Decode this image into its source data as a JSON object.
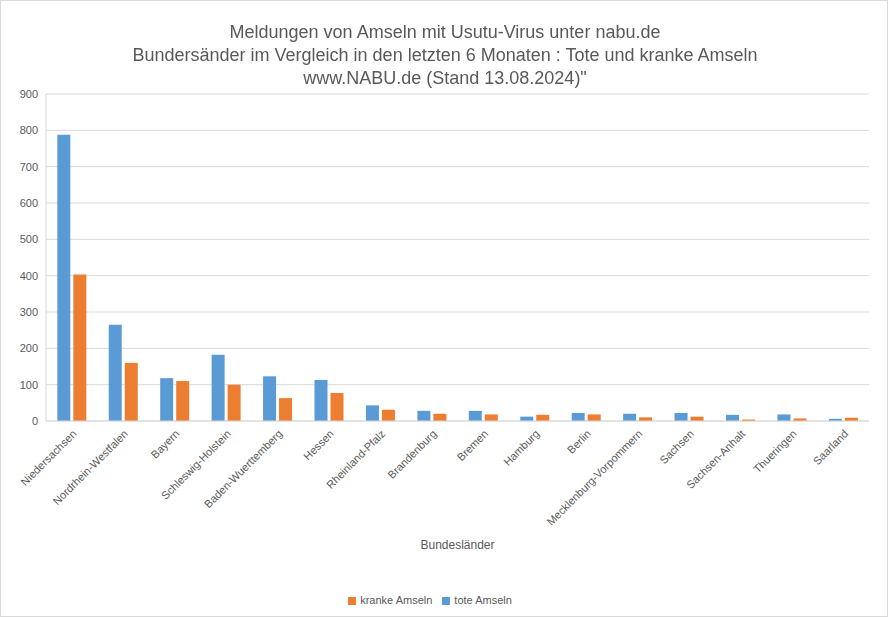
{
  "chart_data": {
    "type": "bar",
    "title": [
      "Meldungen von Amseln mit Usutu-Virus unter nabu.de",
      "Bundersänder im Vergleich in den letzten 6 Monaten : Tote und kranke Amseln",
      "www.NABU.de (Stand 13.08.2024)\""
    ],
    "x_label": "Bundesländer",
    "categories": [
      "Niedersachsen",
      "Nordrhein-Westfalen",
      "Bayern",
      "Schleswig-Holstein",
      "Baden-Wuerttemberg",
      "Hessen",
      "Rheinland-Pfalz",
      "Brandenburg",
      "Bremen",
      "Hamburg",
      "Berlin",
      "Mecklenburg-Vorpommern",
      "Sachsen",
      "Sachsen-Anhalt",
      "Thueringen",
      "Saarland"
    ],
    "series": [
      {
        "name": "tote Amseln",
        "color": "#5b9bd5",
        "values": [
          788,
          265,
          118,
          182,
          123,
          113,
          43,
          28,
          28,
          12,
          22,
          20,
          22,
          17,
          18,
          6
        ]
      },
      {
        "name": "kranke Amseln",
        "color": "#ed7d31",
        "values": [
          403,
          160,
          110,
          100,
          63,
          77,
          31,
          20,
          18,
          17,
          18,
          10,
          12,
          4,
          7,
          9
        ]
      }
    ],
    "ylim": [
      0,
      900
    ],
    "yticks": [
      0,
      100,
      200,
      300,
      400,
      500,
      600,
      700,
      800,
      900
    ],
    "grid": true,
    "legend": "bottom"
  }
}
